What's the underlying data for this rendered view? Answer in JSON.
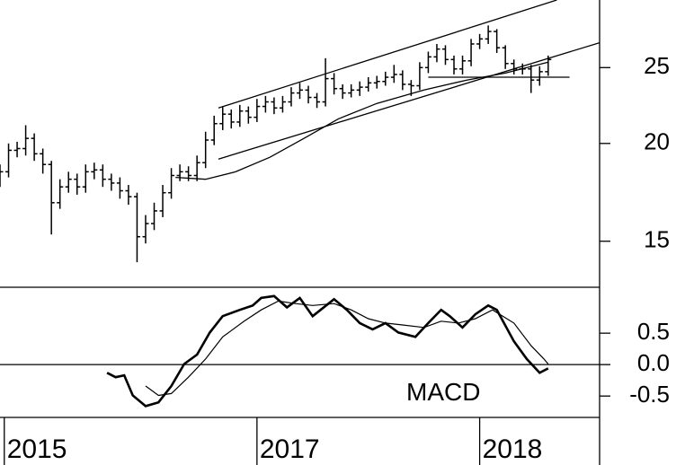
{
  "chart_data": [
    {
      "type": "ohlc",
      "log": true,
      "color": "#000000",
      "xlim": [
        0,
        140
      ],
      "ylim": [
        13.1,
        30.5
      ],
      "yticks": [
        25,
        20,
        15
      ],
      "x": [
        0,
        2,
        4,
        6,
        8,
        10,
        12,
        14,
        16,
        18,
        20,
        22,
        24,
        26,
        28,
        30,
        32,
        34,
        36,
        38,
        40,
        42,
        44,
        46,
        48,
        50,
        52,
        54,
        56,
        58,
        60,
        62,
        64,
        66,
        68,
        70,
        72,
        74,
        76,
        78,
        80,
        82,
        84,
        86,
        88,
        90,
        92,
        94,
        96,
        98,
        100,
        102,
        104,
        106,
        108,
        110,
        112,
        114,
        116,
        118,
        120,
        122,
        124,
        126,
        128
      ],
      "open": [
        18.0,
        18.4,
        19.6,
        19.7,
        20.3,
        19.4,
        18.8,
        16.8,
        17.6,
        18.0,
        17.6,
        18.4,
        18.5,
        18.0,
        17.8,
        17.4,
        17.1,
        15.2,
        15.8,
        16.4,
        17.3,
        18.2,
        18.4,
        18.2,
        18.9,
        20.2,
        21.2,
        21.8,
        21.3,
        22.0,
        21.6,
        22.3,
        22.6,
        22.2,
        22.6,
        23.2,
        23.4,
        22.9,
        22.6,
        24.2,
        23.5,
        23.2,
        23.4,
        23.6,
        23.9,
        24.0,
        24.3,
        24.5,
        23.8,
        23.7,
        25.0,
        25.8,
        26.4,
        25.6,
        24.9,
        25.5,
        26.8,
        27.2,
        27.8,
        26.5,
        25.3,
        24.9,
        24.9,
        24.1,
        24.7
      ],
      "high": [
        18.8,
        20.0,
        20.1,
        21.1,
        20.6,
        19.7,
        19.0,
        18.0,
        18.4,
        18.3,
        18.8,
        18.9,
        18.8,
        18.3,
        18.1,
        17.7,
        17.3,
        16.2,
        16.8,
        17.7,
        18.6,
        18.8,
        18.7,
        19.3,
        20.7,
        21.7,
        22.3,
        22.1,
        22.4,
        22.3,
        22.8,
        23.0,
        22.9,
        23.0,
        23.6,
        23.9,
        23.7,
        23.2,
        25.7,
        24.6,
        23.8,
        23.8,
        24.0,
        24.3,
        24.4,
        24.7,
        25.2,
        24.8,
        24.1,
        25.4,
        26.2,
        26.8,
        26.7,
        25.9,
        25.9,
        27.2,
        27.6,
        28.3,
        28.0,
        26.7,
        25.6,
        25.3,
        25.2,
        25.1,
        25.9
      ],
      "low": [
        17.6,
        18.1,
        19.2,
        19.3,
        19.0,
        18.3,
        15.3,
        16.5,
        17.3,
        17.2,
        17.3,
        18.0,
        17.6,
        17.4,
        17.0,
        16.7,
        14.1,
        14.9,
        15.5,
        16.1,
        17.0,
        17.9,
        17.9,
        17.9,
        18.6,
        19.9,
        20.8,
        20.9,
        21.0,
        21.2,
        21.3,
        21.9,
        21.8,
        21.9,
        22.3,
        22.8,
        22.5,
        22.2,
        22.3,
        23.1,
        22.8,
        22.9,
        23.0,
        23.3,
        23.5,
        23.7,
        23.9,
        23.4,
        23.0,
        23.4,
        24.6,
        25.4,
        25.2,
        24.5,
        24.5,
        25.1,
        26.4,
        26.8,
        26.1,
        24.9,
        24.5,
        24.5,
        23.2,
        23.7,
        24.4
      ],
      "close": [
        18.4,
        19.6,
        19.7,
        20.3,
        19.4,
        18.8,
        16.8,
        17.6,
        18.0,
        17.6,
        18.4,
        18.5,
        18.0,
        17.8,
        17.4,
        17.1,
        15.2,
        15.8,
        16.4,
        17.3,
        18.2,
        18.4,
        18.2,
        18.9,
        20.2,
        21.2,
        21.8,
        21.3,
        22.0,
        21.6,
        22.3,
        22.6,
        22.2,
        22.6,
        23.2,
        23.4,
        22.9,
        22.6,
        24.2,
        23.5,
        23.2,
        23.4,
        23.6,
        23.9,
        24.0,
        24.3,
        24.5,
        23.8,
        23.7,
        25.0,
        25.8,
        26.4,
        25.6,
        24.9,
        25.5,
        26.8,
        27.2,
        27.8,
        26.5,
        25.3,
        24.9,
        24.9,
        24.1,
        24.7,
        25.6
      ],
      "series": [
        {
          "color": "#000000",
          "x": [
            41,
            48,
            55,
            63,
            71,
            79,
            88,
            99,
            109,
            118,
            128
          ],
          "values": [
            18.1,
            18.0,
            18.4,
            19.2,
            20.3,
            21.5,
            22.5,
            23.4,
            24.1,
            24.6,
            25.4
          ]
        }
      ],
      "trendlines": [
        {
          "x": [
            51,
            130
          ],
          "values": [
            22.2,
            30.5
          ]
        },
        {
          "x": [
            51,
            140
          ],
          "values": [
            19.1,
            26.9
          ]
        },
        {
          "x": [
            100,
            133
          ],
          "values": [
            24.3,
            24.3
          ]
        }
      ]
    },
    {
      "type": "line",
      "label": "MACD",
      "xlim": [
        0,
        140
      ],
      "ylim": [
        -0.84,
        1.23
      ],
      "yticks": [
        0.5,
        {
          "value": 0,
          "label": "0.0"
        },
        -0.5
      ],
      "xticks": [
        {
          "value": 1,
          "label": "2015"
        },
        {
          "value": 60,
          "label": "2017"
        },
        {
          "value": 112,
          "label": "2018"
        }
      ],
      "series": [
        {
          "color": "#000000",
          "width": 2.6,
          "x": [
            25,
            27,
            29,
            31,
            34,
            37,
            40,
            43,
            46,
            49,
            52,
            56,
            59,
            61,
            64,
            67,
            70,
            73,
            78,
            81,
            84,
            87,
            90,
            93,
            97,
            100,
            103,
            105,
            108,
            111,
            114,
            116,
            120,
            123,
            126,
            128
          ],
          "values": [
            -0.13,
            -0.2,
            -0.17,
            -0.49,
            -0.66,
            -0.6,
            -0.34,
            0.01,
            0.16,
            0.51,
            0.77,
            0.87,
            0.94,
            1.06,
            1.09,
            0.91,
            1.06,
            0.77,
            1.04,
            0.87,
            0.66,
            0.56,
            0.66,
            0.51,
            0.44,
            0.66,
            0.87,
            0.77,
            0.59,
            0.8,
            0.94,
            0.87,
            0.37,
            0.09,
            -0.13,
            -0.06
          ]
        },
        {
          "color": "#000000",
          "width": 1.2,
          "x": [
            34,
            37,
            40,
            44,
            48,
            52,
            57,
            61,
            65,
            69,
            73,
            78,
            82,
            86,
            90,
            94,
            99,
            103,
            107,
            111,
            115,
            120,
            124,
            127,
            128
          ],
          "values": [
            -0.34,
            -0.49,
            -0.46,
            -0.2,
            0.09,
            0.44,
            0.69,
            0.87,
            1.01,
            0.97,
            0.94,
            0.97,
            0.87,
            0.73,
            0.66,
            0.63,
            0.59,
            0.69,
            0.66,
            0.73,
            0.87,
            0.66,
            0.3,
            0.09,
            0.01
          ]
        }
      ]
    }
  ]
}
